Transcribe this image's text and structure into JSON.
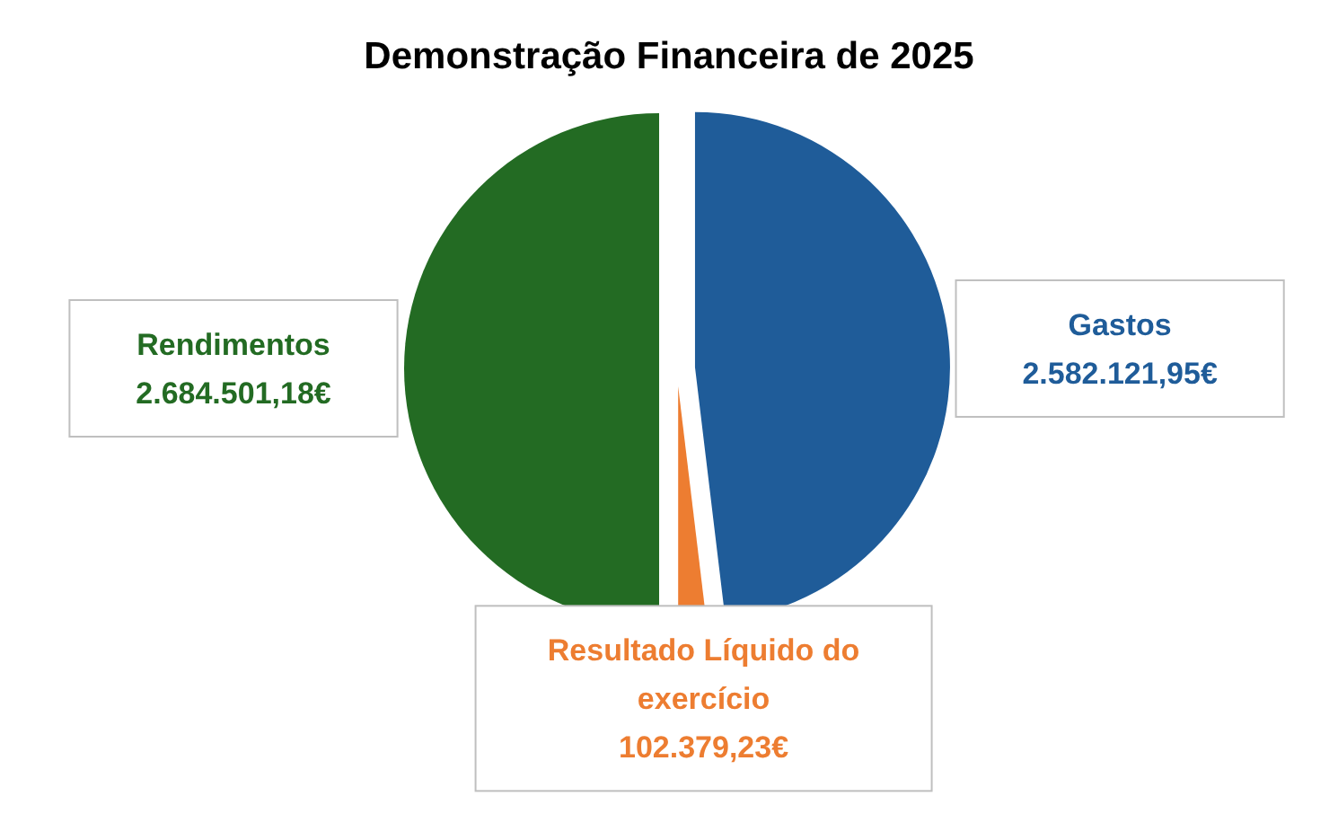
{
  "chart_data": {
    "type": "pie",
    "title": "Demonstração Financeira de 2025",
    "categories": [
      "Gastos",
      "Resultado Líquido do exercício",
      "Rendimentos"
    ],
    "values": [
      2582121.95,
      102379.23,
      2684501.18
    ],
    "value_labels": [
      "2.582.121,95€",
      "102.379,23€",
      "2.684.501,18€"
    ],
    "colors": [
      "#1f5c99",
      "#ed7d31",
      "#236b23"
    ],
    "legend": false
  }
}
